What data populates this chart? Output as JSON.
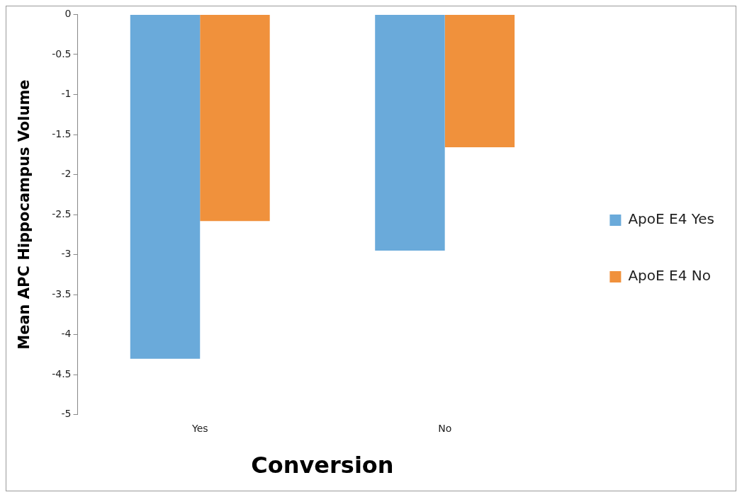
{
  "chart_data": {
    "type": "bar",
    "xlabel": "Conversion",
    "ylabel": "Mean APC Hippocampus Volume",
    "categories": [
      "Yes",
      "No"
    ],
    "series": [
      {
        "name": "ApoE E4 Yes",
        "color": "#6aaada",
        "values": [
          -4.3,
          -2.95
        ]
      },
      {
        "name": "ApoE E4 No",
        "color": "#f0913c",
        "values": [
          -2.58,
          -1.66
        ]
      }
    ],
    "ylim": [
      -5,
      0
    ],
    "yticks": [
      0,
      -0.5,
      -1,
      -1.5,
      -2,
      -2.5,
      -3,
      -3.5,
      -4,
      -4.5,
      -5
    ],
    "grid": false,
    "legend": "right"
  }
}
